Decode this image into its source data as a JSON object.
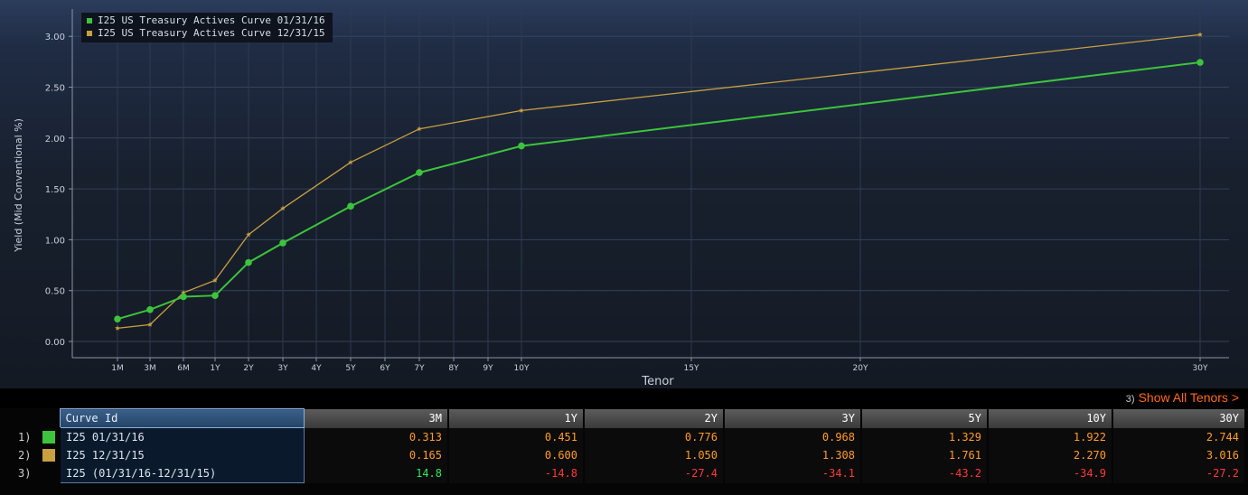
{
  "chart_data": {
    "type": "line",
    "title": "",
    "xlabel": "Tenor",
    "ylabel": "Yield (Mid Conventional %)",
    "ylim": [
      0,
      3.0
    ],
    "yticks": [
      "0.00",
      "0.50",
      "1.00",
      "1.50",
      "2.00",
      "2.50",
      "3.00"
    ],
    "grid": true,
    "legend_placement": "top-left",
    "x_ticks": [
      {
        "label": "1M",
        "years": 0.083
      },
      {
        "label": "3M",
        "years": 0.25
      },
      {
        "label": "6M",
        "years": 0.5
      },
      {
        "label": "1Y",
        "years": 1
      },
      {
        "label": "2Y",
        "years": 2
      },
      {
        "label": "3Y",
        "years": 3
      },
      {
        "label": "4Y",
        "years": 4
      },
      {
        "label": "5Y",
        "years": 5
      },
      {
        "label": "6Y",
        "years": 6
      },
      {
        "label": "7Y",
        "years": 7
      },
      {
        "label": "8Y",
        "years": 8
      },
      {
        "label": "9Y",
        "years": 9
      },
      {
        "label": "10Y",
        "years": 10
      },
      {
        "label": "15Y",
        "years": 15
      },
      {
        "label": "20Y",
        "years": 20
      },
      {
        "label": "30Y",
        "years": 30
      }
    ],
    "series": [
      {
        "name": "I25 US Treasury Actives Curve 01/31/16",
        "color": "#3cc43c",
        "marker": "circle",
        "x": [
          0.083,
          0.25,
          0.5,
          1,
          2,
          3,
          5,
          7,
          10,
          30
        ],
        "values": [
          0.22,
          0.313,
          0.44,
          0.451,
          0.776,
          0.968,
          1.329,
          1.66,
          1.922,
          2.744
        ]
      },
      {
        "name": "I25 US Treasury Actives Curve 12/31/15",
        "color": "#c8a040",
        "marker": "star",
        "x": [
          0.083,
          0.25,
          0.5,
          1,
          2,
          3,
          5,
          7,
          10,
          30
        ],
        "values": [
          0.13,
          0.165,
          0.48,
          0.6,
          1.05,
          1.308,
          1.761,
          2.09,
          2.27,
          3.016
        ]
      }
    ]
  },
  "show_all": {
    "number": "3)",
    "label": "Show All Tenors >"
  },
  "table": {
    "curve_id_header": "Curve Id",
    "columns": [
      "3M",
      "1Y",
      "2Y",
      "3Y",
      "5Y",
      "10Y",
      "30Y"
    ],
    "rows": [
      {
        "index": "1)",
        "swatch": "#3cc43c",
        "name": "I25 01/31/16",
        "values": [
          "0.313",
          "0.451",
          "0.776",
          "0.968",
          "1.329",
          "1.922",
          "2.744"
        ],
        "kind": "val"
      },
      {
        "index": "2)",
        "swatch": "#c8a040",
        "name": "I25 12/31/15",
        "values": [
          "0.165",
          "0.600",
          "1.050",
          "1.308",
          "1.761",
          "2.270",
          "3.016"
        ],
        "kind": "val"
      },
      {
        "index": "3)",
        "swatch": "",
        "name": "I25 (01/31/16-12/31/15)",
        "values": [
          "14.8",
          "-14.8",
          "-27.4",
          "-34.1",
          "-43.2",
          "-34.9",
          "-27.2"
        ],
        "kind": "diff"
      }
    ]
  }
}
